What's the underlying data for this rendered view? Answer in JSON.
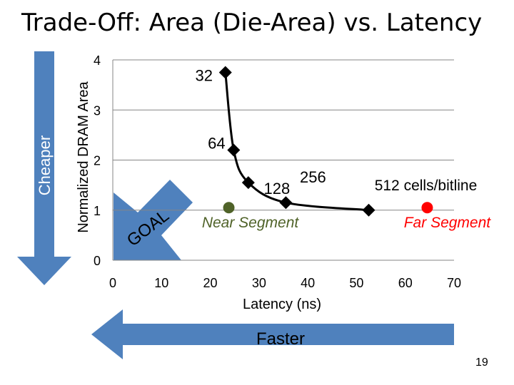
{
  "title": "Trade-Off: Area (Die-Area) vs. Latency",
  "page_number": "19",
  "arrows": {
    "cheaper": "Cheaper",
    "faster": "Faster",
    "goal": "GOAL"
  },
  "colors": {
    "arrow_blue": "#4f81bd",
    "line": "#000000",
    "near_marker": "#4f6228",
    "far_marker": "#ff0000",
    "far_text": "#ff0000",
    "grid": "#868686"
  },
  "chart_data": {
    "type": "scatter",
    "title": "Trade-Off: Area (Die-Area) vs. Latency",
    "xlabel": "Latency (ns)",
    "ylabel": "Normalized DRAM Area",
    "xlim": [
      0,
      70
    ],
    "ylim": [
      0,
      4
    ],
    "xticks": [
      0,
      10,
      20,
      30,
      40,
      50,
      60,
      70
    ],
    "yticks": [
      0,
      1,
      2,
      3,
      4
    ],
    "grid": "horizontal",
    "series": [
      {
        "name": "cells/bitline",
        "line": "smooth",
        "marker": "diamond",
        "points": [
          {
            "x": 23.1,
            "y": 3.75,
            "label": "32"
          },
          {
            "x": 24.8,
            "y": 2.2,
            "label": "64"
          },
          {
            "x": 27.8,
            "y": 1.55,
            "label": "128"
          },
          {
            "x": 35.5,
            "y": 1.15,
            "label": "256"
          },
          {
            "x": 52.5,
            "y": 1.0,
            "label": "512 cells/bitline"
          }
        ]
      },
      {
        "name": "Near Segment",
        "marker": "circle",
        "points": [
          {
            "x": 23.8,
            "y": 1.05,
            "label": "Near Segment"
          }
        ]
      },
      {
        "name": "Far Segment",
        "marker": "circle",
        "points": [
          {
            "x": 64.5,
            "y": 1.05,
            "label": "Far Segment"
          }
        ]
      }
    ]
  }
}
